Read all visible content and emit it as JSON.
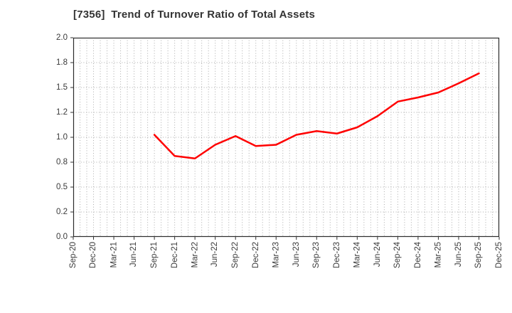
{
  "title": "[7356]  Trend of Turnover Ratio of Total Assets",
  "colors": {
    "line": "#ff0000",
    "grid": "#ababab",
    "spine": "#2b2b2b",
    "tick": "#333333",
    "tick_label": "#3a3a3a",
    "title": "#333333",
    "background": "#ffffff"
  },
  "chart_data": {
    "type": "line",
    "title": "[7356]  Trend of Turnover Ratio of Total Assets",
    "ticker": "7356",
    "categories": [
      "Sep-20",
      "Dec-20",
      "Mar-21",
      "Jun-21",
      "Sep-21",
      "Dec-21",
      "Mar-22",
      "Jun-22",
      "Sep-22",
      "Dec-22",
      "Mar-23",
      "Jun-23",
      "Sep-23",
      "Dec-23",
      "Mar-24",
      "Jun-24",
      "Sep-24",
      "Dec-24",
      "Mar-25",
      "Jun-25",
      "Sep-25",
      "Dec-25"
    ],
    "series": [
      {
        "name": "Turnover Ratio of Total Assets",
        "color": "#ff0000",
        "values": [
          null,
          null,
          null,
          null,
          1.02,
          0.85,
          0.83,
          0.94,
          1.01,
          0.93,
          0.94,
          1.02,
          1.05,
          1.03,
          1.08,
          1.17,
          1.33,
          1.38,
          1.44,
          1.55,
          1.67,
          null
        ]
      }
    ],
    "xlabel": "",
    "ylabel": "",
    "y_ticks": [
      0.0,
      0.2,
      0.5,
      0.8,
      1.0,
      1.2,
      1.5,
      1.8,
      2.0
    ],
    "y_tick_labels": [
      "0.0",
      "0.2",
      "0.5",
      "0.8",
      "1.0",
      "1.2",
      "1.5",
      "1.8",
      "2.0"
    ],
    "y_tick_spacing": "uniform (non-linear value scale)",
    "ylim": [
      0.0,
      2.0
    ],
    "grid": true,
    "grid_style": "dotted",
    "minor_vertical_gridlines": "monthly (3 per quarter)",
    "legend_position": "none"
  }
}
